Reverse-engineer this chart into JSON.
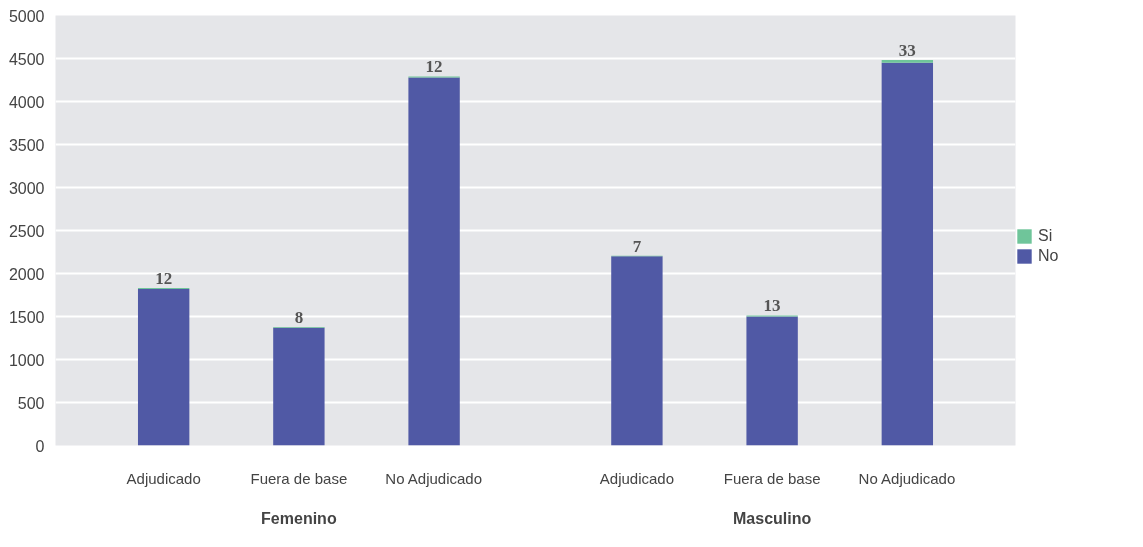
{
  "chart_data": {
    "type": "bar",
    "stacked": true,
    "categories": [
      "Adjudicado",
      "Fuera de base",
      "No Adjudicado",
      "Adjudicado",
      "Fuera de base",
      "No Adjudicado"
    ],
    "series": [
      {
        "name": "No",
        "color": "#5059a5",
        "values": [
          1820,
          1370,
          4280,
          2200,
          1500,
          4450
        ]
      },
      {
        "name": "Si",
        "color": "#6fc59a",
        "values": [
          12,
          8,
          12,
          7,
          13,
          33
        ],
        "value_labels": [
          "12",
          "8",
          "12",
          "7",
          "13",
          "33"
        ]
      }
    ],
    "annotations": [
      "Femenino",
      "Masculino"
    ],
    "ylim": [
      0,
      5000
    ],
    "yticks": [
      0,
      500,
      1000,
      1500,
      2000,
      2500,
      3000,
      3500,
      4000,
      4500,
      5000
    ],
    "grid": "y",
    "legend": "right"
  }
}
